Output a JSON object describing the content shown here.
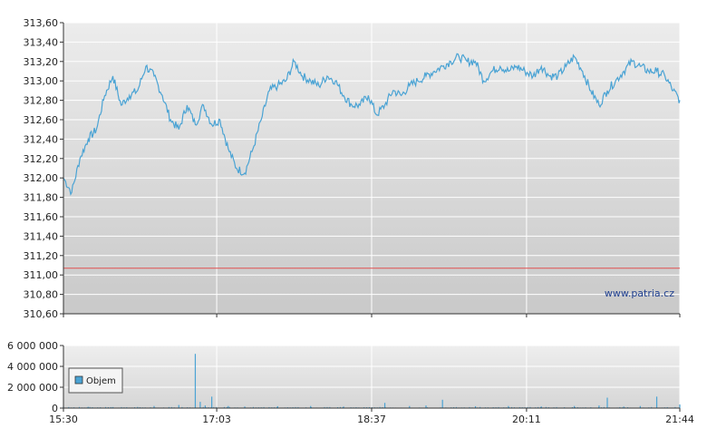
{
  "chart_data": [
    {
      "type": "line",
      "title": "",
      "xlabel": "",
      "ylabel": "",
      "x_ticks": [
        "15:30",
        "17:03",
        "18:37",
        "20:11",
        "21:44"
      ],
      "y_ticks": [
        "310,60",
        "310,80",
        "311,00",
        "311,20",
        "311,40",
        "311,60",
        "311,80",
        "312,00",
        "312,20",
        "312,40",
        "312,60",
        "312,80",
        "313,00",
        "313,20",
        "313,40",
        "313,60"
      ],
      "ylim": [
        310.6,
        313.6
      ],
      "xlim": [
        "15:30",
        "21:44"
      ],
      "grid": true,
      "reference_line": {
        "value": 311.07,
        "color": "#e05050"
      },
      "series": [
        {
          "color": "#4aa3d4",
          "x": [
            "15:30",
            "15:35",
            "15:40",
            "15:45",
            "15:50",
            "15:55",
            "16:00",
            "16:05",
            "16:10",
            "16:15",
            "16:20",
            "16:25",
            "16:30",
            "16:35",
            "16:40",
            "16:45",
            "16:50",
            "16:55",
            "17:00",
            "17:05",
            "17:10",
            "17:15",
            "17:20",
            "17:25",
            "17:30",
            "17:35",
            "17:40",
            "17:45",
            "17:50",
            "17:55",
            "18:00",
            "18:05",
            "18:10",
            "18:15",
            "18:20",
            "18:25",
            "18:30",
            "18:35",
            "18:40",
            "18:45",
            "18:50",
            "18:55",
            "19:00",
            "19:05",
            "19:10",
            "19:15",
            "19:20",
            "19:25",
            "19:30",
            "19:35",
            "19:40",
            "19:45",
            "19:50",
            "19:55",
            "20:00",
            "20:05",
            "20:10",
            "20:15",
            "20:20",
            "20:25",
            "20:30",
            "20:35",
            "20:40",
            "20:45",
            "20:50",
            "20:55",
            "21:00",
            "21:05",
            "21:10",
            "21:15",
            "21:20",
            "21:25",
            "21:30",
            "21:35",
            "21:40",
            "21:44"
          ],
          "y": [
            312.0,
            311.85,
            312.2,
            312.4,
            312.5,
            312.85,
            313.05,
            312.75,
            312.85,
            312.9,
            313.15,
            313.05,
            312.85,
            312.6,
            312.5,
            312.75,
            312.55,
            312.75,
            312.55,
            312.6,
            312.3,
            312.1,
            312.05,
            312.3,
            312.6,
            312.9,
            312.95,
            313.0,
            313.2,
            313.05,
            313.0,
            312.95,
            313.05,
            313.0,
            312.85,
            312.75,
            312.75,
            312.85,
            312.65,
            312.75,
            312.9,
            312.85,
            312.95,
            313.0,
            313.05,
            313.1,
            313.15,
            313.2,
            313.25,
            313.2,
            313.2,
            313.0,
            313.1,
            313.15,
            313.1,
            313.15,
            313.1,
            313.05,
            313.15,
            313.05,
            313.05,
            313.15,
            313.25,
            313.1,
            312.9,
            312.75,
            312.9,
            313.0,
            313.1,
            313.2,
            313.15,
            313.1,
            313.1,
            313.05,
            312.9,
            312.8
          ]
        }
      ]
    },
    {
      "type": "bar",
      "title": "",
      "xlabel": "",
      "ylabel": "",
      "x_ticks": [
        "15:30",
        "17:03",
        "18:37",
        "20:11",
        "21:44"
      ],
      "y_ticks": [
        "0",
        "2 000 000",
        "4 000 000",
        "6 000 000"
      ],
      "ylim": [
        0,
        6000000
      ],
      "grid": true,
      "legend": {
        "position": "left",
        "entries": [
          "Objem"
        ]
      },
      "series": [
        {
          "name": "Objem",
          "color": "#4aa3d4",
          "x": [
            "15:30",
            "15:45",
            "16:00",
            "16:15",
            "16:25",
            "16:40",
            "16:50",
            "16:53",
            "16:56",
            "17:00",
            "17:10",
            "17:20",
            "17:40",
            "18:00",
            "18:20",
            "18:45",
            "19:00",
            "19:10",
            "19:20",
            "19:40",
            "20:00",
            "20:20",
            "20:40",
            "20:55",
            "21:00",
            "21:10",
            "21:20",
            "21:30",
            "21:44"
          ],
          "values": [
            150000,
            120000,
            100000,
            110000,
            200000,
            300000,
            5200000,
            600000,
            250000,
            1100000,
            200000,
            150000,
            180000,
            200000,
            150000,
            500000,
            200000,
            250000,
            800000,
            180000,
            200000,
            150000,
            200000,
            250000,
            1000000,
            150000,
            200000,
            1100000,
            350000
          ]
        }
      ]
    }
  ],
  "watermark": "www.patria.cz",
  "colors": {
    "plot_bg_top": "#ececec",
    "plot_bg_bottom": "#cccccc",
    "grid": "#ffffff",
    "line": "#4aa3d4",
    "ref_line": "#e05050",
    "axis": "#333333"
  }
}
